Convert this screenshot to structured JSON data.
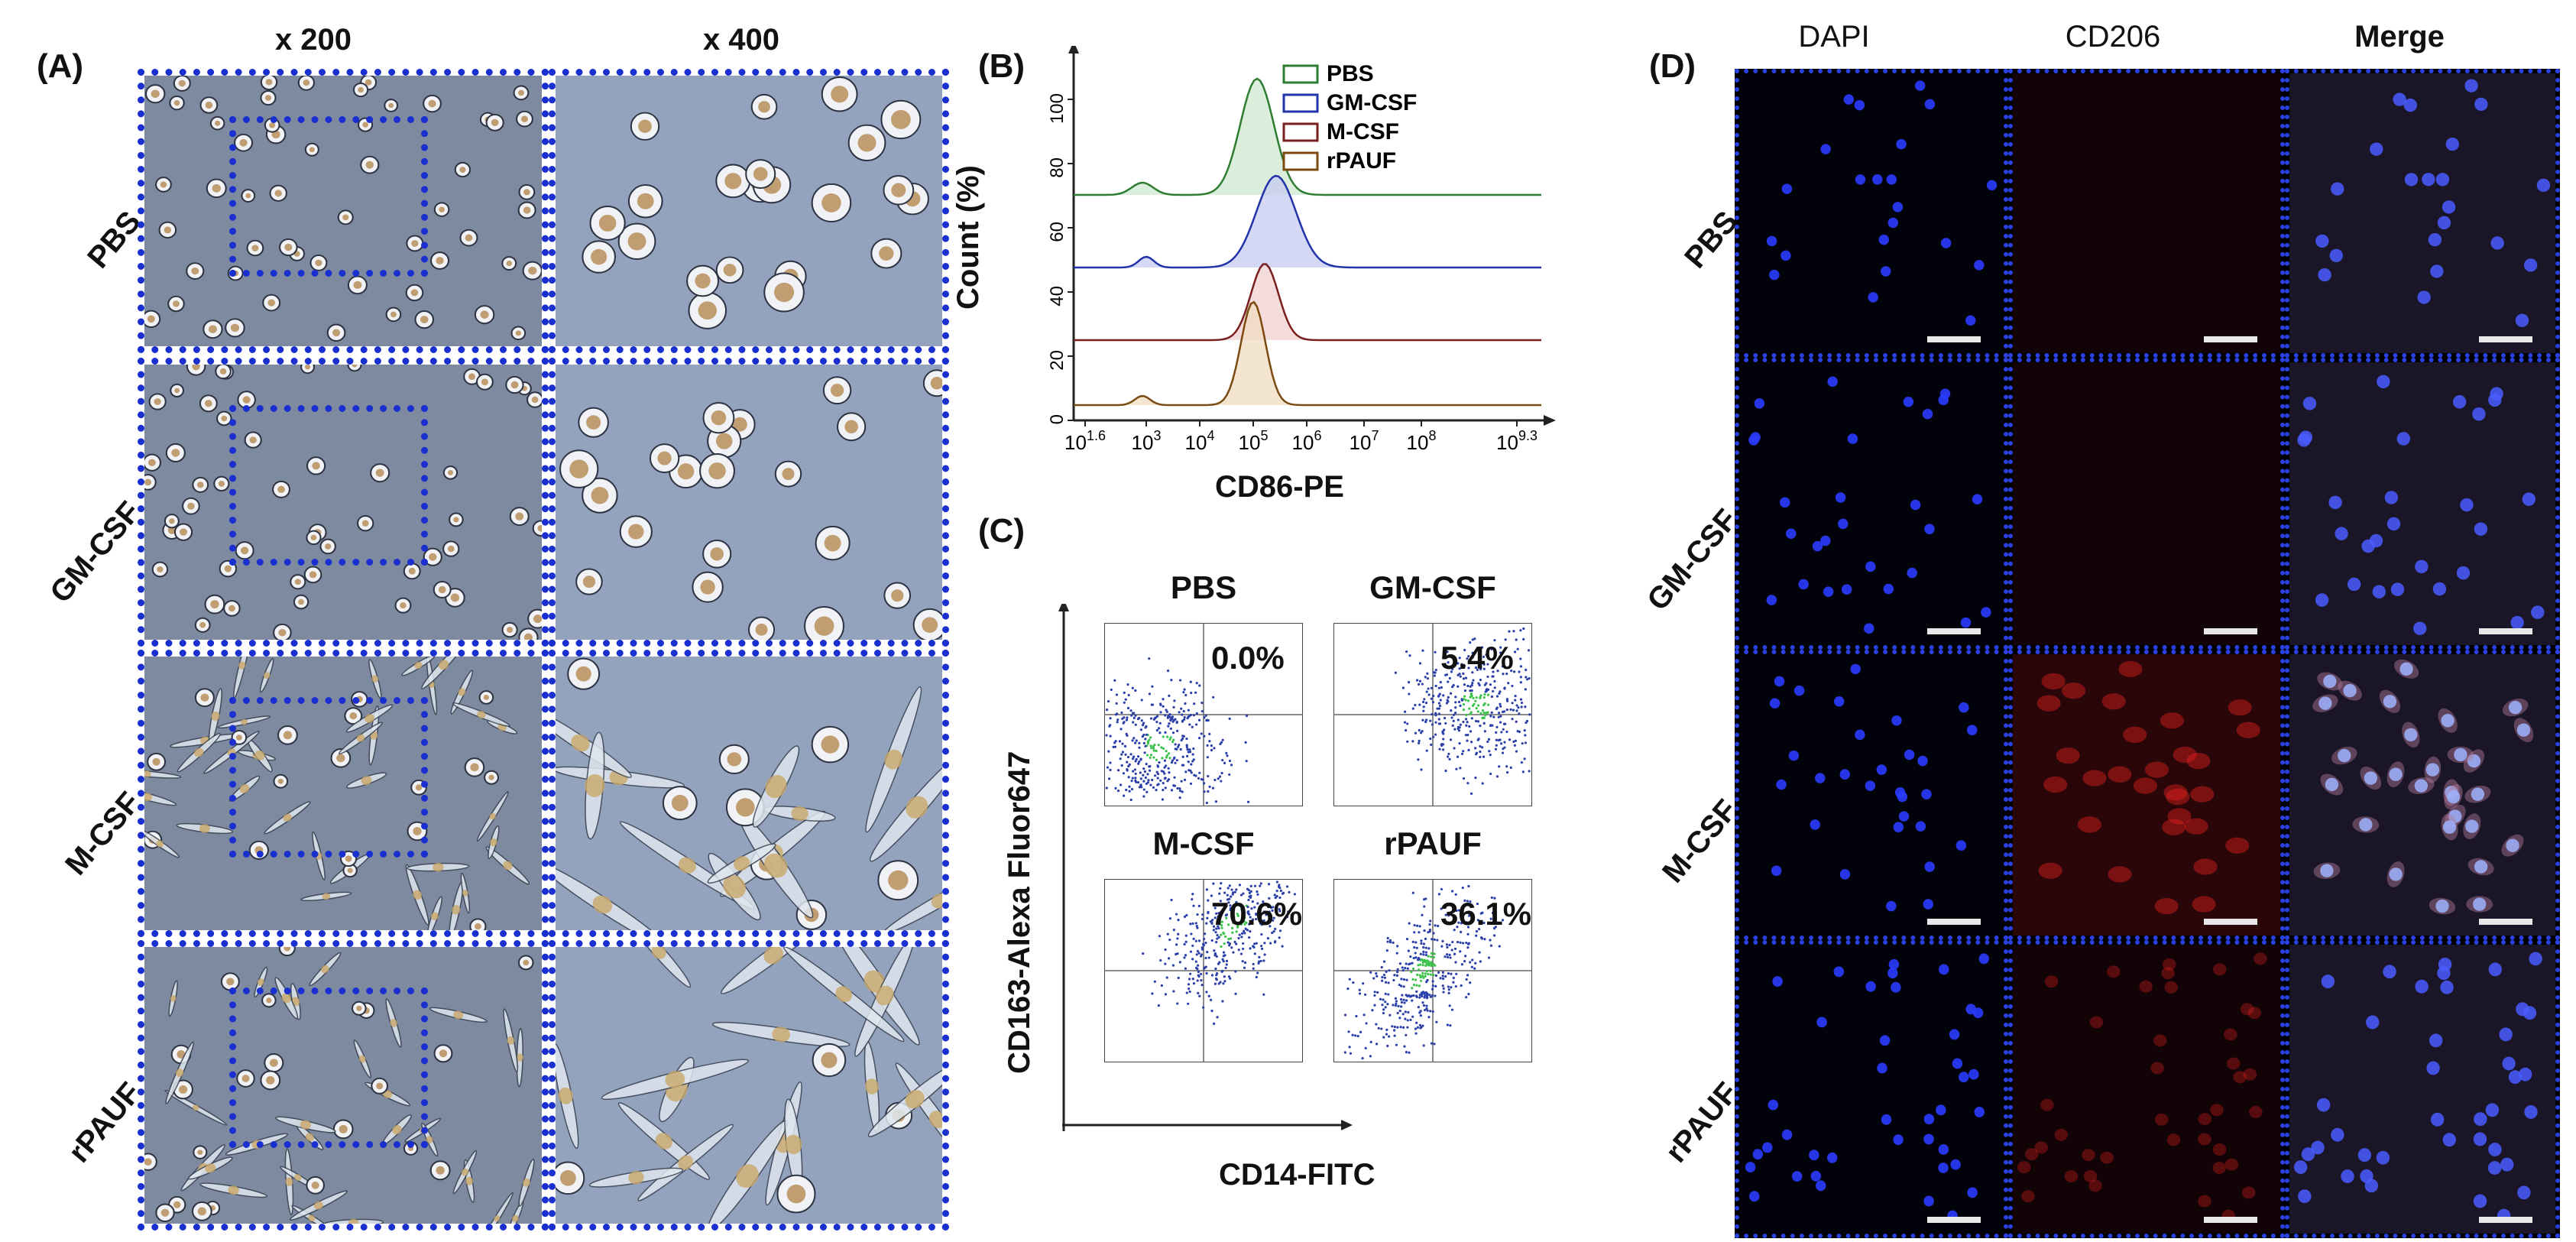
{
  "panels": {
    "A": "(A)",
    "B": "(B)",
    "C": "(C)",
    "D": "(D)"
  },
  "panelA": {
    "columns": [
      "x 200",
      "x 400"
    ],
    "rows": [
      "PBS",
      "GM-CSF",
      "M-CSF",
      "rPAUF"
    ]
  },
  "panelB": {
    "xlabel": "CD86-PE",
    "ylabel": "Count (%)",
    "legend": [
      "PBS",
      "GM-CSF",
      "M-CSF",
      "rPAUF"
    ],
    "xticks": [
      {
        "base": "10",
        "exp": "1.6"
      },
      {
        "base": "10",
        "exp": "3"
      },
      {
        "base": "10",
        "exp": "4"
      },
      {
        "base": "10",
        "exp": "5"
      },
      {
        "base": "10",
        "exp": "6"
      },
      {
        "base": "10",
        "exp": "7"
      },
      {
        "base": "10",
        "exp": "8"
      },
      {
        "base": "10",
        "exp": "9.3"
      }
    ],
    "yticks": [
      "0",
      "20",
      "40",
      "60",
      "80",
      "100"
    ],
    "colors": {
      "PBS": "#2e7d32",
      "GM-CSF": "#2233aa",
      "M-CSF": "#7a1f1f",
      "rPAUF": "#7a4a10"
    }
  },
  "panelC": {
    "xlabel": "CD14-FITC",
    "ylabel": "CD163-Alexa Fluor647",
    "plots": [
      {
        "name": "PBS",
        "pct": "0.0%"
      },
      {
        "name": "GM-CSF",
        "pct": "5.4%"
      },
      {
        "name": "M-CSF",
        "pct": "70.6%"
      },
      {
        "name": "rPAUF",
        "pct": "36.1%"
      }
    ]
  },
  "panelD": {
    "columns": [
      "DAPI",
      "CD206",
      "Merge"
    ],
    "rows": [
      "PBS",
      "GM-CSF",
      "M-CSF",
      "rPAUF"
    ],
    "colors": {
      "dapi": "#2a3cff",
      "cd206": "#e02020"
    }
  }
}
